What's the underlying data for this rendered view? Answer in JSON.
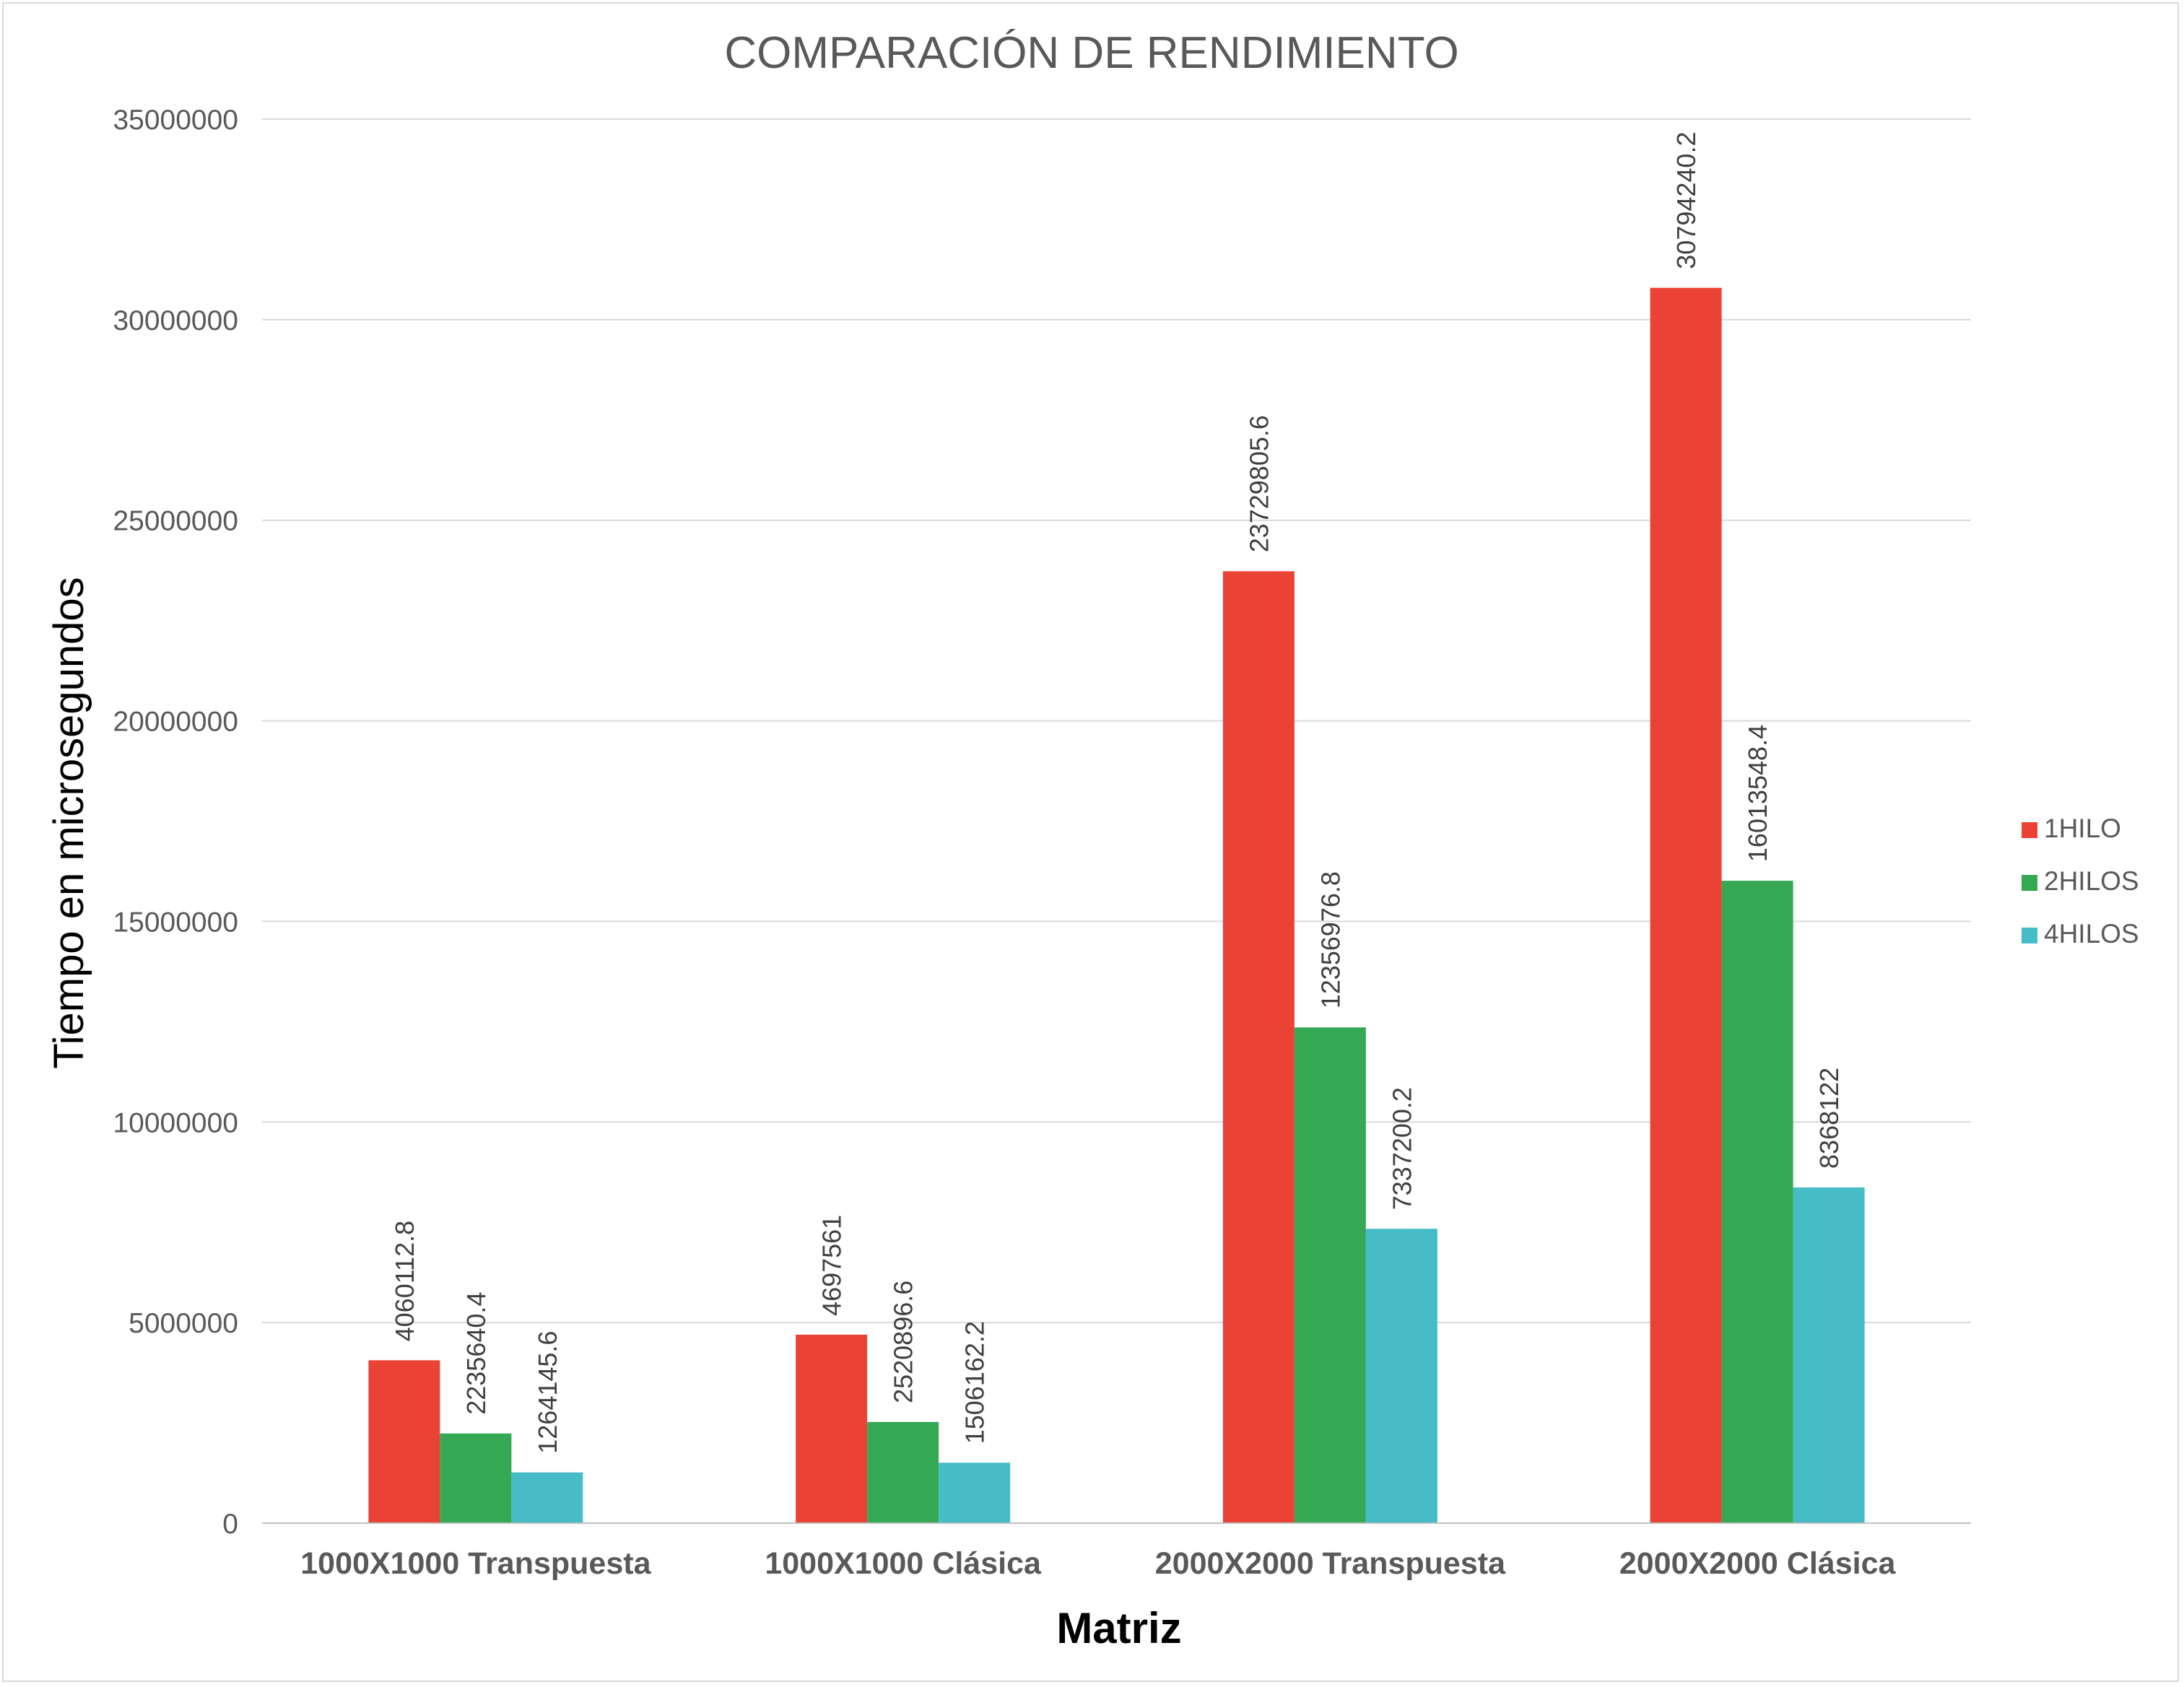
{
  "chart_data": {
    "type": "bar",
    "title": "COMPARACIÓN DE RENDIMIENTO",
    "xlabel": "Matriz",
    "ylabel": "Tiempo en microsegundos",
    "categories": [
      "1000X1000 Transpuesta",
      "1000X1000 Clásica",
      "2000X2000 Transpuesta",
      "2000X2000 Clásica"
    ],
    "series": [
      {
        "name": "1HILO",
        "color": "#EA4335",
        "values": [
          4060112.8,
          4697561,
          23729805.6,
          30794240.2
        ],
        "labels": [
          "4060112.8",
          "4697561",
          "23729805.6",
          "30794240.2"
        ]
      },
      {
        "name": "2HILOS",
        "color": "#34A853",
        "values": [
          2235640.4,
          2520896.6,
          12356976.8,
          16013548.4
        ],
        "labels": [
          "2235640.4",
          "2520896.6",
          "12356976.8",
          "16013548.4"
        ]
      },
      {
        "name": "4HILOS",
        "color": "#46BDC6",
        "values": [
          1264145.6,
          1506162.2,
          7337200.2,
          8368122
        ],
        "labels": [
          "1264145.6",
          "1506162.2",
          "7337200.2",
          "8368122"
        ]
      }
    ],
    "ylim": [
      0,
      35000000
    ],
    "yticks": [
      0,
      5000000,
      10000000,
      15000000,
      20000000,
      25000000,
      30000000,
      35000000
    ],
    "ytick_labels": [
      "0",
      "5000000",
      "10000000",
      "15000000",
      "20000000",
      "25000000",
      "30000000",
      "35000000"
    ],
    "grid": true,
    "legend_position": "right",
    "gridline_color": "#d9d9d9",
    "axis_color": "#bfbfbf"
  }
}
